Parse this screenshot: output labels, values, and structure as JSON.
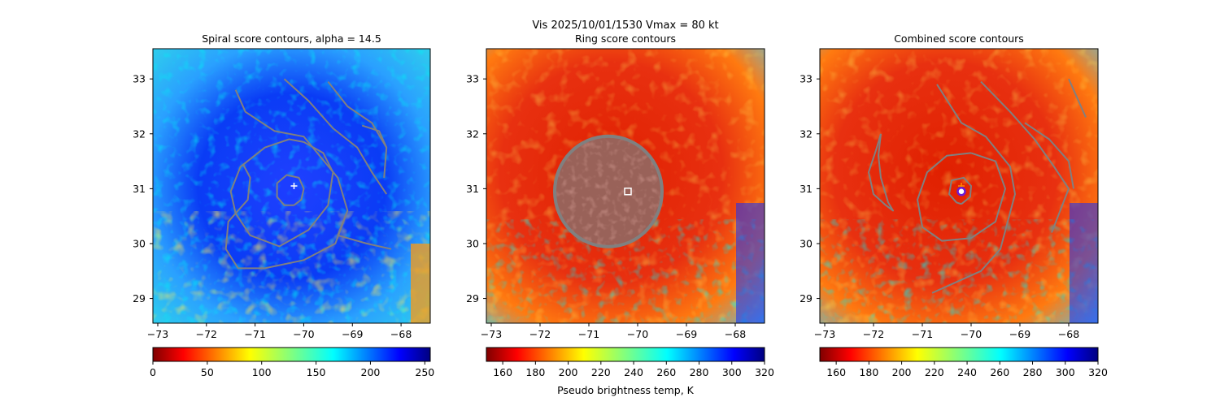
{
  "suptitle_line1": "Vis  2025/10/01/1530    Vmax = 80 kt",
  "colors": {
    "contour": "#808080",
    "marker_white": "#ffffff",
    "marker_purple": "#6a1bd6",
    "marker_orange": "#ff8c00"
  },
  "chart_data": [
    {
      "type": "heatmap",
      "title": "Spiral score contours, alpha = 14.5",
      "colormap": "jet",
      "xlim": [
        -73.1,
        -67.4
      ],
      "ylim": [
        28.55,
        33.55
      ],
      "xticks": [
        -73,
        -72,
        -71,
        -70,
        -69,
        -68
      ],
      "xtick_labels": [
        "−73",
        "−72",
        "−71",
        "−70",
        "−69",
        "−68"
      ],
      "yticks": [
        29,
        30,
        31,
        32,
        33
      ],
      "ytick_labels": [
        "29",
        "30",
        "31",
        "32",
        "33"
      ],
      "colorbar": {
        "min": 0,
        "max": 255,
        "ticks": [
          0,
          50,
          100,
          150,
          200,
          250
        ],
        "tick_labels": [
          "0",
          "50",
          "100",
          "150",
          "200",
          "250"
        ],
        "label": "",
        "reversed": false
      },
      "markers": [
        {
          "lon": -70.2,
          "lat": 31.05,
          "symbol": "plus",
          "color": "#ffffff"
        }
      ],
      "contours": [
        [
          [
            -70.2,
            30.7
          ],
          [
            -70.05,
            30.8
          ],
          [
            -70.0,
            31.0
          ],
          [
            -70.1,
            31.2
          ],
          [
            -70.35,
            31.25
          ],
          [
            -70.55,
            31.1
          ],
          [
            -70.55,
            30.85
          ],
          [
            -70.4,
            30.7
          ],
          [
            -70.2,
            30.7
          ]
        ],
        [
          [
            -70.0,
            31.85
          ],
          [
            -69.6,
            31.65
          ],
          [
            -69.4,
            31.3
          ],
          [
            -69.5,
            30.7
          ],
          [
            -69.9,
            30.25
          ],
          [
            -70.5,
            29.95
          ],
          [
            -71.1,
            30.15
          ],
          [
            -71.4,
            30.55
          ],
          [
            -71.5,
            30.95
          ],
          [
            -71.3,
            31.4
          ],
          [
            -70.8,
            31.75
          ],
          [
            -70.3,
            31.9
          ],
          [
            -70.0,
            31.85
          ]
        ],
        [
          [
            -71.4,
            32.8
          ],
          [
            -71.2,
            32.4
          ],
          [
            -70.6,
            32.05
          ],
          [
            -70.0,
            31.95
          ],
          [
            -69.3,
            31.2
          ],
          [
            -69.1,
            30.6
          ],
          [
            -69.35,
            30.0
          ],
          [
            -70.0,
            29.7
          ],
          [
            -70.8,
            29.55
          ],
          [
            -71.35,
            29.55
          ],
          [
            -71.6,
            29.9
          ],
          [
            -71.55,
            30.4
          ],
          [
            -71.15,
            30.8
          ],
          [
            -71.1,
            31.2
          ],
          [
            -71.25,
            31.45
          ]
        ],
        [
          [
            -70.4,
            33.0
          ],
          [
            -69.9,
            32.6
          ],
          [
            -69.4,
            32.1
          ],
          [
            -68.9,
            31.75
          ],
          [
            -68.6,
            31.3
          ],
          [
            -68.3,
            30.9
          ]
        ],
        [
          [
            -69.5,
            32.95
          ],
          [
            -69.1,
            32.5
          ],
          [
            -68.6,
            32.2
          ],
          [
            -68.3,
            31.75
          ]
        ],
        [
          [
            -68.8,
            32.15
          ],
          [
            -68.45,
            32.05
          ],
          [
            -68.3,
            31.75
          ],
          [
            -68.35,
            31.2
          ]
        ],
        [
          [
            -69.1,
            30.6
          ],
          [
            -69.3,
            30.15
          ],
          [
            -68.7,
            30.0
          ],
          [
            -68.2,
            29.9
          ]
        ]
      ]
    },
    {
      "type": "heatmap",
      "title": "Ring score contours",
      "colormap": "jet_r",
      "xlim": [
        -73.1,
        -67.4
      ],
      "ylim": [
        28.55,
        33.55
      ],
      "xticks": [
        -73,
        -72,
        -71,
        -70,
        -69,
        -68
      ],
      "xtick_labels": [
        "−73",
        "−72",
        "−71",
        "−70",
        "−69",
        "−68"
      ],
      "yticks": [
        29,
        30,
        31,
        32,
        33
      ],
      "ytick_labels": [
        "29",
        "30",
        "31",
        "32",
        "33"
      ],
      "colorbar": {
        "min": 150,
        "max": 320,
        "ticks": [
          160,
          180,
          200,
          220,
          240,
          260,
          280,
          300,
          320
        ],
        "tick_labels": [
          "160",
          "180",
          "200",
          "220",
          "240",
          "260",
          "280",
          "300",
          "320"
        ],
        "label": "Pseudo brightness temp, K",
        "reversed": true
      },
      "markers": [
        {
          "lon": -70.2,
          "lat": 30.95,
          "symbol": "square",
          "color": "#ffffff"
        }
      ],
      "ring_patch": {
        "lon": -70.6,
        "lat": 30.95
      }
    },
    {
      "type": "heatmap",
      "title": "Combined score contours",
      "colormap": "jet_r",
      "xlim": [
        -73.1,
        -67.4
      ],
      "ylim": [
        28.55,
        33.55
      ],
      "xticks": [
        -73,
        -72,
        -71,
        -70,
        -69,
        -68
      ],
      "xtick_labels": [
        "−73",
        "−72",
        "−71",
        "−70",
        "−69",
        "−68"
      ],
      "yticks": [
        29,
        30,
        31,
        32,
        33
      ],
      "ytick_labels": [
        "29",
        "30",
        "31",
        "32",
        "33"
      ],
      "colorbar": {
        "min": 150,
        "max": 320,
        "ticks": [
          160,
          180,
          200,
          220,
          240,
          260,
          280,
          300,
          320
        ],
        "tick_labels": [
          "160",
          "180",
          "200",
          "220",
          "240",
          "260",
          "280",
          "300",
          "320"
        ],
        "label": "",
        "reversed": true
      },
      "markers": [
        {
          "lon": -70.2,
          "lat": 31.05,
          "symbol": "plus",
          "color": "#ff8c00"
        },
        {
          "lon": -70.2,
          "lat": 30.95,
          "symbol": "circle",
          "color": "#6a1bd6"
        }
      ],
      "contours": [
        [
          [
            -70.2,
            30.72
          ],
          [
            -70.02,
            30.85
          ],
          [
            -70.0,
            31.05
          ],
          [
            -70.15,
            31.2
          ],
          [
            -70.4,
            31.15
          ],
          [
            -70.45,
            30.9
          ],
          [
            -70.3,
            30.75
          ],
          [
            -70.2,
            30.72
          ]
        ],
        [
          [
            -70.0,
            31.65
          ],
          [
            -69.5,
            31.5
          ],
          [
            -69.3,
            31.0
          ],
          [
            -69.5,
            30.4
          ],
          [
            -70.0,
            30.1
          ],
          [
            -70.6,
            30.05
          ],
          [
            -71.0,
            30.3
          ],
          [
            -71.1,
            30.8
          ],
          [
            -70.9,
            31.3
          ],
          [
            -70.5,
            31.6
          ],
          [
            -70.0,
            31.65
          ]
        ],
        [
          [
            -70.7,
            32.9
          ],
          [
            -70.2,
            32.2
          ],
          [
            -69.7,
            31.95
          ],
          [
            -69.2,
            31.4
          ],
          [
            -69.1,
            30.9
          ],
          [
            -69.25,
            30.4
          ],
          [
            -69.4,
            29.9
          ],
          [
            -69.8,
            29.5
          ],
          [
            -70.3,
            29.3
          ],
          [
            -70.8,
            29.1
          ]
        ],
        [
          [
            -69.8,
            32.95
          ],
          [
            -69.2,
            32.4
          ],
          [
            -68.7,
            31.9
          ],
          [
            -68.3,
            31.4
          ],
          [
            -68.0,
            31.0
          ],
          [
            -68.35,
            30.2
          ]
        ],
        [
          [
            -68.9,
            32.2
          ],
          [
            -68.4,
            31.9
          ],
          [
            -68.0,
            31.5
          ],
          [
            -67.9,
            31.0
          ]
        ],
        [
          [
            -71.85,
            32.0
          ],
          [
            -71.9,
            31.6
          ],
          [
            -71.85,
            31.2
          ],
          [
            -71.7,
            30.75
          ],
          [
            -71.6,
            30.6
          ],
          [
            -71.75,
            30.7
          ],
          [
            -72.0,
            30.9
          ],
          [
            -72.1,
            31.3
          ],
          [
            -71.95,
            31.7
          ],
          [
            -71.85,
            32.0
          ]
        ],
        [
          [
            -68.0,
            33.0
          ],
          [
            -67.8,
            32.6
          ],
          [
            -67.65,
            32.3
          ]
        ]
      ]
    }
  ]
}
